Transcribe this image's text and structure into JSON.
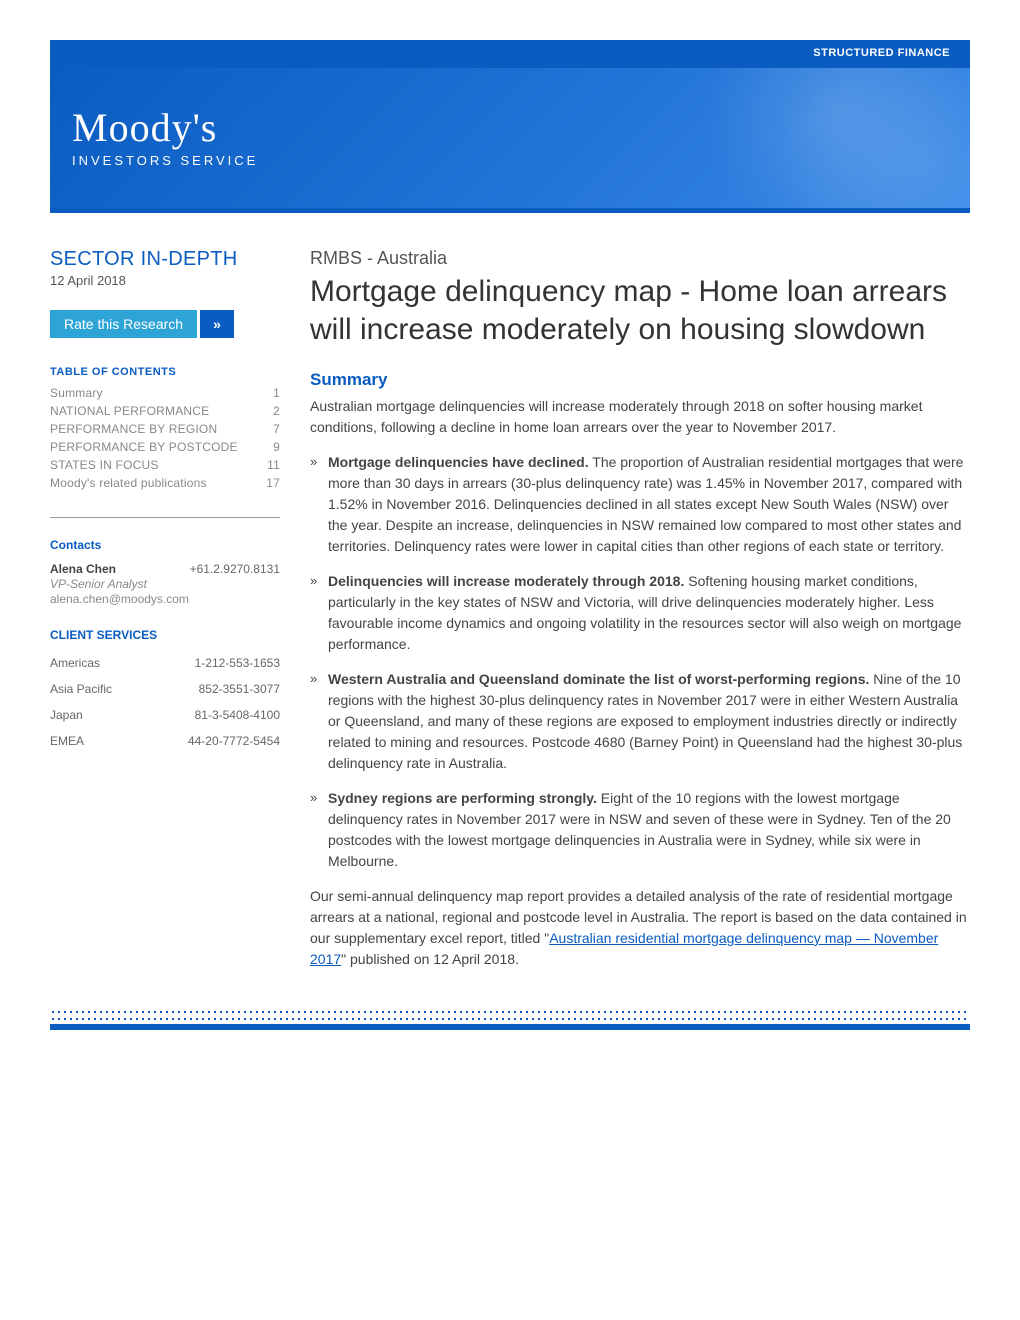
{
  "colors": {
    "brand_blue": "#0a5cc1",
    "accent_cyan": "#2ea4d6",
    "text_dark": "#333333",
    "text_mid": "#555555",
    "text_muted": "#888888",
    "background": "#ffffff"
  },
  "typography": {
    "body_family": "Segoe UI, Arial, sans-serif",
    "logo_family": "Georgia, serif",
    "title_size_pt": 30,
    "body_size_pt": 14,
    "toc_size_pt": 12
  },
  "header": {
    "tag": "STRUCTURED FINANCE",
    "logo_main": "Moody's",
    "logo_sub": "INVESTORS SERVICE"
  },
  "sidebar": {
    "sector_label": "SECTOR IN-DEPTH",
    "date": "12 April 2018",
    "rate_button": "Rate this Research",
    "rate_button_icon": "»",
    "toc_heading": "TABLE OF CONTENTS",
    "toc": [
      {
        "label": "Summary",
        "page": "1"
      },
      {
        "label": "NATIONAL PERFORMANCE",
        "page": "2"
      },
      {
        "label": "PERFORMANCE BY REGION",
        "page": "7"
      },
      {
        "label": "PERFORMANCE BY POSTCODE",
        "page": "9"
      },
      {
        "label": "STATES IN FOCUS",
        "page": "11"
      },
      {
        "label": "Moody's related publications",
        "page": "17"
      }
    ],
    "contacts_heading": "Contacts",
    "contact": {
      "name": "Alena Chen",
      "phone": "+61.2.9270.8131",
      "title": "VP-Senior Analyst",
      "email": "alena.chen@moodys.com"
    },
    "services_heading": "CLIENT SERVICES",
    "services": [
      {
        "region": "Americas",
        "phone": "1-212-553-1653"
      },
      {
        "region": "Asia Pacific",
        "phone": "852-3551-3077"
      },
      {
        "region": "Japan",
        "phone": "81-3-5408-4100"
      },
      {
        "region": "EMEA",
        "phone": "44-20-7772-5454"
      }
    ]
  },
  "main": {
    "pretitle": "RMBS - Australia",
    "title": "Mortgage delinquency map - Home loan arrears will increase moderately on housing slowdown",
    "summary_heading": "Summary",
    "summary_intro": "Australian mortgage delinquencies will increase moderately through 2018 on softer housing market conditions, following a decline in home loan arrears over the year to November 2017.",
    "bullets": [
      {
        "lead": "Mortgage delinquencies have declined.",
        "text": " The proportion of Australian residential mortgages that were more than 30 days in arrears (30-plus delinquency rate) was 1.45% in November 2017, compared with 1.52% in November 2016. Delinquencies declined in all states except New South Wales (NSW) over the year. Despite an increase, delinquencies in NSW remained low compared to most other states and territories. Delinquency rates were lower in capital cities than other regions of each state or territory."
      },
      {
        "lead": "Delinquencies will increase moderately through 2018.",
        "text": " Softening housing market conditions, particularly in the key states of NSW and Victoria, will drive delinquencies moderately higher. Less favourable income dynamics and ongoing volatility in the resources sector will also weigh on mortgage performance."
      },
      {
        "lead": "Western Australia and Queensland dominate the list of worst-performing regions.",
        "text": " Nine of the 10 regions with the highest 30-plus delinquency rates in November 2017 were in either Western Australia or Queensland, and many of these regions are exposed to employment industries directly or indirectly related to mining and resources. Postcode 4680 (Barney Point) in Queensland had the highest 30-plus delinquency rate in Australia."
      },
      {
        "lead": "Sydney regions are performing strongly.",
        "text": " Eight of the 10 regions with the lowest mortgage delinquency rates in November 2017 were in NSW and seven of these were in Sydney. Ten of the 20 postcodes with the lowest mortgage delinquencies in Australia were in Sydney, while six were in Melbourne."
      }
    ],
    "closing_pre": "Our semi-annual delinquency map report provides a detailed analysis of the rate of residential mortgage arrears at a national, regional and postcode level in Australia. The report is based on the data contained in our supplementary excel report, titled \"",
    "closing_link": "Australian residential mortgage delinquency map — November 2017",
    "closing_post": "\" published on 12 April 2018."
  }
}
